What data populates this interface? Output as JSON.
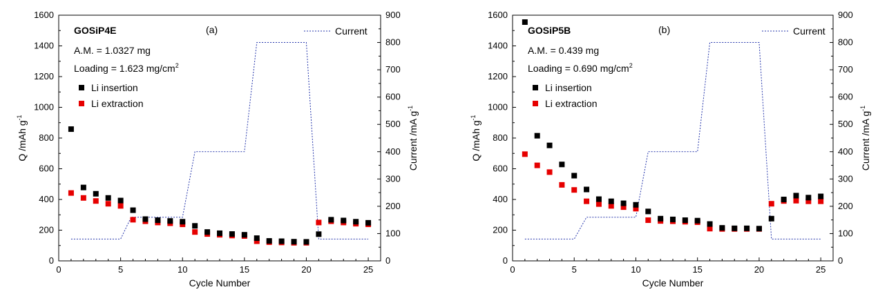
{
  "colors": {
    "insertion": "#000000",
    "extraction": "#e60000",
    "current": "#2233aa"
  },
  "chart_data": [
    {
      "type": "scatter",
      "panel_label": "(a)",
      "sample": "GOSiP4E",
      "am": "A.M. = 1.0327 mg",
      "loading": "Loading = 1.623 mg/cm",
      "loading_sup": "2",
      "xlabel": "Cycle Number",
      "ylabel": "Q /mAh g",
      "ylabel_sup": "-1",
      "y2label": "Current /mA g",
      "y2label_sup": "-1",
      "xlim": [
        0,
        26
      ],
      "ylim": [
        0,
        1600
      ],
      "y2lim": [
        0,
        900
      ],
      "xticks": [
        0,
        5,
        10,
        15,
        20,
        25
      ],
      "yticks": [
        0,
        200,
        400,
        600,
        800,
        1000,
        1200,
        1400,
        1600
      ],
      "y2ticks": [
        0,
        100,
        200,
        300,
        400,
        500,
        600,
        700,
        800,
        900
      ],
      "legend": {
        "current": "Current",
        "insertion": "Li insertion",
        "extraction": "Li extraction"
      },
      "x": [
        1,
        2,
        3,
        4,
        5,
        6,
        7,
        8,
        9,
        10,
        11,
        12,
        13,
        14,
        15,
        16,
        17,
        18,
        19,
        20,
        21,
        22,
        23,
        24,
        25
      ],
      "series": [
        {
          "name": "Li insertion",
          "values": [
            858,
            478,
            437,
            410,
            393,
            330,
            272,
            265,
            260,
            255,
            228,
            188,
            180,
            175,
            170,
            148,
            130,
            128,
            125,
            124,
            174,
            268,
            263,
            255,
            248
          ]
        },
        {
          "name": "Li extraction",
          "values": [
            442,
            410,
            390,
            372,
            358,
            268,
            258,
            250,
            245,
            238,
            188,
            175,
            170,
            165,
            162,
            128,
            122,
            120,
            118,
            118,
            250,
            258,
            250,
            242,
            238
          ]
        }
      ],
      "current": {
        "name": "Current",
        "x": [
          1,
          5,
          5.85,
          10,
          11,
          15,
          16,
          20,
          21,
          25
        ],
        "y": [
          80,
          80,
          160,
          160,
          400,
          400,
          800,
          800,
          80,
          80
        ]
      }
    },
    {
      "type": "scatter",
      "panel_label": "(b)",
      "sample": "GOSiP5B",
      "am": "A.M. = 0.439 mg",
      "loading": "Loading = 0.690 mg/cm",
      "loading_sup": "2",
      "xlabel": "Cycle Number",
      "ylabel": "Q /mAh g",
      "ylabel_sup": "-1",
      "y2label": "Current /mA g",
      "y2label_sup": "-1",
      "xlim": [
        0,
        26
      ],
      "ylim": [
        0,
        1600
      ],
      "y2lim": [
        0,
        900
      ],
      "xticks": [
        0,
        5,
        10,
        15,
        20,
        25
      ],
      "yticks": [
        0,
        200,
        400,
        600,
        800,
        1000,
        1200,
        1400,
        1600
      ],
      "y2ticks": [
        0,
        100,
        200,
        300,
        400,
        500,
        600,
        700,
        800,
        900
      ],
      "legend": {
        "current": "Current",
        "insertion": "Li insertion",
        "extraction": "Li extraction"
      },
      "x": [
        1,
        2,
        3,
        4,
        5,
        6,
        7,
        8,
        9,
        10,
        11,
        12,
        13,
        14,
        15,
        16,
        17,
        18,
        19,
        20,
        21,
        22,
        23,
        24,
        25
      ],
      "series": [
        {
          "name": "Li insertion",
          "values": [
            1555,
            815,
            752,
            628,
            555,
            465,
            402,
            388,
            375,
            365,
            322,
            275,
            270,
            265,
            262,
            240,
            215,
            212,
            212,
            210,
            275,
            400,
            425,
            412,
            420
          ]
        },
        {
          "name": "Li extraction",
          "values": [
            695,
            622,
            578,
            495,
            462,
            388,
            370,
            358,
            350,
            340,
            265,
            260,
            258,
            255,
            252,
            210,
            208,
            208,
            208,
            208,
            372,
            390,
            392,
            388,
            388
          ]
        }
      ],
      "current": {
        "name": "Current",
        "x": [
          1,
          5,
          6,
          10,
          11,
          15,
          16,
          20,
          21,
          25
        ],
        "y": [
          80,
          80,
          160,
          160,
          400,
          400,
          800,
          800,
          80,
          80
        ]
      }
    }
  ]
}
